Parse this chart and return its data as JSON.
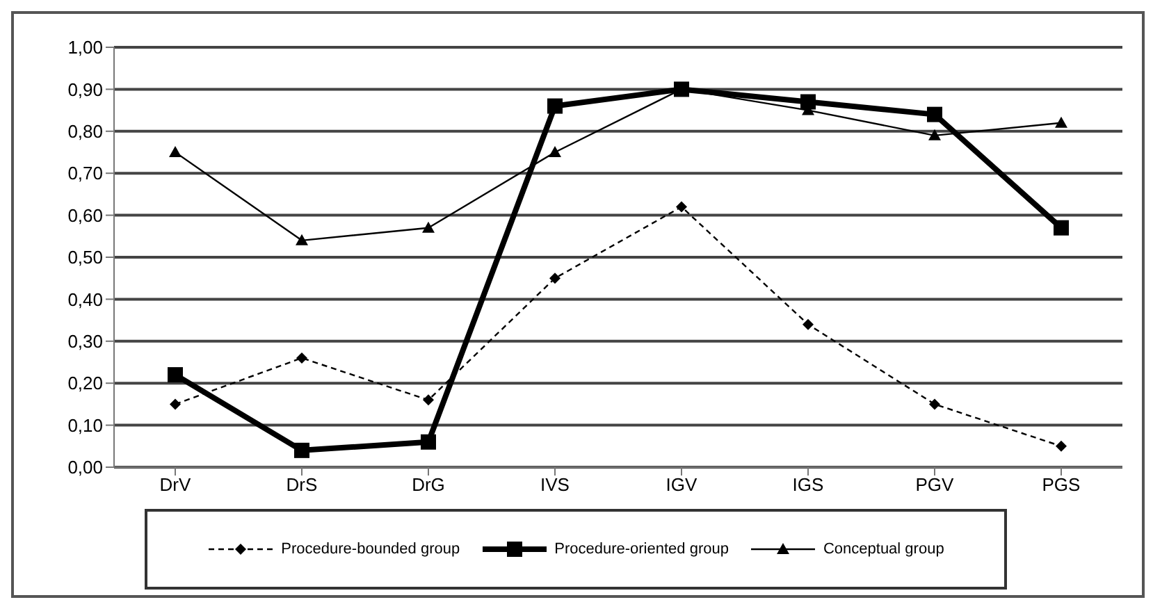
{
  "chart_data": {
    "type": "line",
    "categories": [
      "DrV",
      "DrS",
      "DrG",
      "IVS",
      "IGV",
      "IGS",
      "PGV",
      "PGS"
    ],
    "series": [
      {
        "name": "Procedure-bounded group",
        "color": "#000000",
        "marker": "diamond",
        "line_style": "dashed",
        "values": [
          0.15,
          0.26,
          0.16,
          0.45,
          0.62,
          0.34,
          0.15,
          0.05
        ]
      },
      {
        "name": "Procedure-oriented group",
        "color": "#000000",
        "marker": "square",
        "line_style": "solid",
        "values": [
          0.22,
          0.04,
          0.06,
          0.86,
          0.9,
          0.87,
          0.84,
          0.57
        ]
      },
      {
        "name": "Conceptual group",
        "color": "#000000",
        "marker": "triangle",
        "line_style": "solid",
        "values": [
          0.75,
          0.54,
          0.57,
          0.75,
          0.9,
          0.85,
          0.79,
          0.82
        ]
      }
    ],
    "ylim": [
      0,
      1
    ],
    "yticks": [
      {
        "value": 0,
        "label": "0,00"
      },
      {
        "value": 0.1,
        "label": "0,10"
      },
      {
        "value": 0.2,
        "label": "0,20"
      },
      {
        "value": 0.3,
        "label": "0,30"
      },
      {
        "value": 0.4,
        "label": "0,40"
      },
      {
        "value": 0.5,
        "label": "0,50"
      },
      {
        "value": 0.6,
        "label": "0,60"
      },
      {
        "value": 0.7,
        "label": "0,70"
      },
      {
        "value": 0.8,
        "label": "0,80"
      },
      {
        "value": 0.9,
        "label": "0,90"
      },
      {
        "value": 1,
        "label": "1,00"
      }
    ],
    "grid": "y",
    "legend": "bottom"
  }
}
